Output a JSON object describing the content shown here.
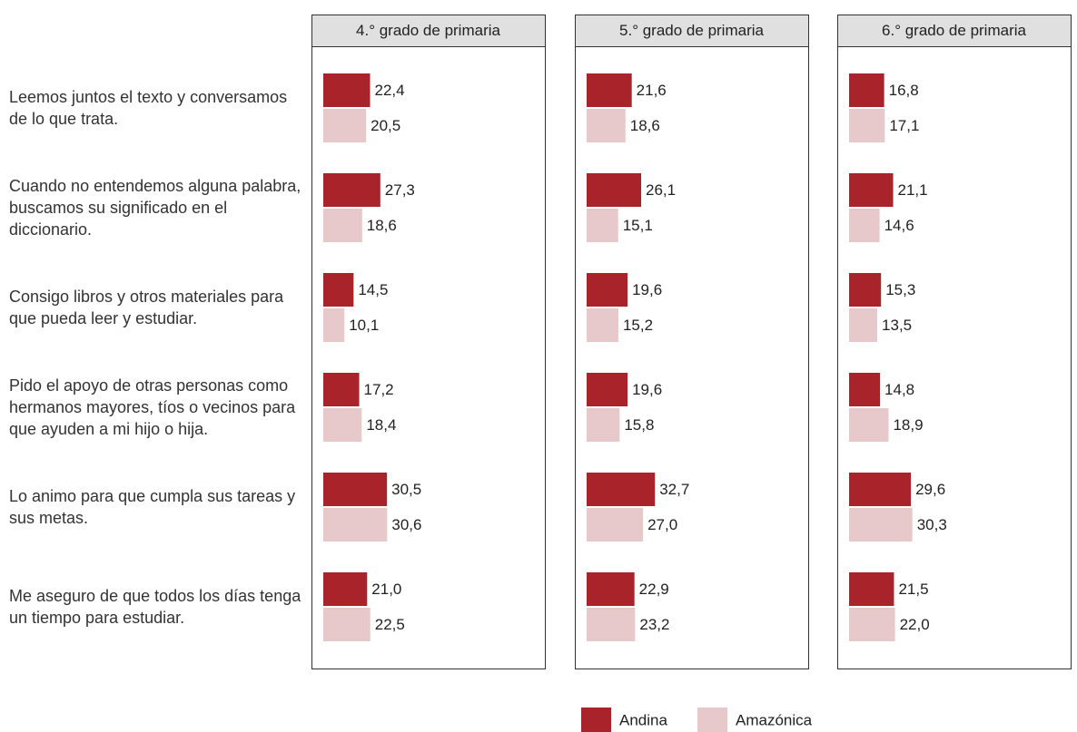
{
  "chart_data": {
    "type": "bar",
    "orientation": "horizontal",
    "categories": [
      "Leemos juntos el texto y conversamos de lo que trata.",
      "Cuando no entendemos alguna palabra, buscamos su significado en el diccionario.",
      "Consigo libros y otros materiales para que pueda leer y estudiar.",
      "Pido el apoyo de otras personas como hermanos mayores, tíos o vecinos para que ayuden a mi hijo o hija.",
      "Lo animo para que cumpla sus tareas y sus metas.",
      "Me aseguro de que todos los días tenga un tiempo para estudiar."
    ],
    "series": [
      {
        "name": "Andina",
        "color": "#a8232a"
      },
      {
        "name": "Amazónica",
        "color": "#e8c9cb"
      }
    ],
    "panels": [
      {
        "title": "4.° grado de primaria",
        "series": [
          {
            "values": [
              22.4,
              27.3,
              14.5,
              17.2,
              30.5,
              21.0
            ],
            "value_labels": [
              "22,4",
              "27,3",
              "14,5",
              "17,2",
              "30,5",
              "21,0"
            ]
          },
          {
            "values": [
              20.5,
              18.6,
              10.1,
              18.4,
              30.6,
              22.5
            ],
            "value_labels": [
              "20,5",
              "18,6",
              "10,1",
              "18,4",
              "30,6",
              "22,5"
            ]
          }
        ]
      },
      {
        "title": "5.° grado de primaria",
        "series": [
          {
            "values": [
              21.6,
              26.1,
              19.6,
              19.6,
              32.7,
              22.9
            ],
            "value_labels": [
              "21,6",
              "26,1",
              "19,6",
              "19,6",
              "32,7",
              "22,9"
            ]
          },
          {
            "values": [
              18.6,
              15.1,
              15.2,
              15.8,
              27.0,
              23.2
            ],
            "value_labels": [
              "18,6",
              "15,1",
              "15,2",
              "15,8",
              "27,0",
              "23,2"
            ]
          }
        ]
      },
      {
        "title": "6.° grado de primaria",
        "series": [
          {
            "values": [
              16.8,
              21.1,
              15.3,
              14.8,
              29.6,
              21.5
            ],
            "value_labels": [
              "16,8",
              "21,1",
              "15,3",
              "14,8",
              "29,6",
              "21,5"
            ]
          },
          {
            "values": [
              17.1,
              14.6,
              13.5,
              18.9,
              30.3,
              22.0
            ],
            "value_labels": [
              "17,1",
              "14,6",
              "13,5",
              "18,9",
              "30,3",
              "22,0"
            ]
          }
        ]
      }
    ],
    "legend": "bottom"
  }
}
